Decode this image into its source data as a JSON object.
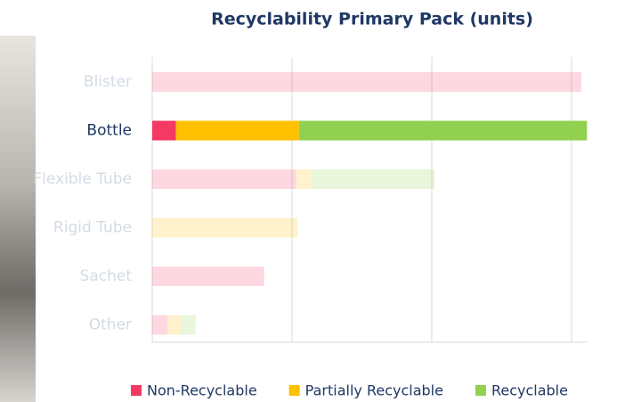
{
  "chart_data": {
    "type": "stacked-bar-horizontal",
    "title": "Recyclability Primary Pack (units)",
    "categories": [
      "Blister",
      "Bottle",
      "Flexible Tube",
      "Rigid Tube",
      "Sachet",
      "Other"
    ],
    "highlight_index": 1,
    "series": [
      {
        "name": "Non-Recyclable",
        "color": "#f43a63",
        "values": [
          307,
          17,
          103,
          null,
          80,
          11
        ]
      },
      {
        "name": "Partially Recyclable",
        "color": "#ffc000",
        "values": [
          null,
          88,
          11,
          104,
          null,
          10
        ]
      },
      {
        "name": "Recyclable",
        "color": "#92d050",
        "values": [
          null,
          206,
          88,
          null,
          null,
          10
        ]
      }
    ],
    "xlim": [
      0,
      320
    ],
    "xticks": [
      0,
      100,
      200,
      300
    ],
    "grid": true
  }
}
